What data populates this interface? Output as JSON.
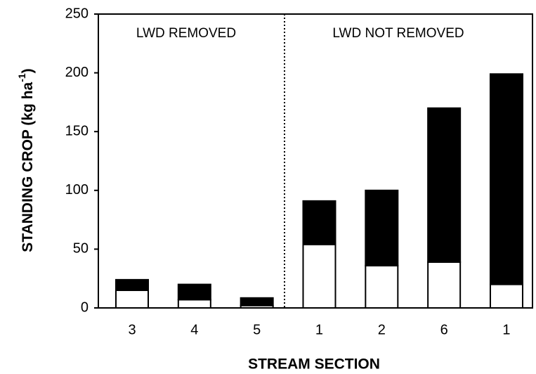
{
  "chart_data": {
    "type": "stacked_bar",
    "x_label": "STREAM SECTION",
    "y_label": {
      "text": "STANDING CROP (kg ha",
      "superscript": "-1",
      "suffix": ")"
    },
    "annotations": [
      "LWD REMOVED",
      "LWD NOT REMOVED"
    ],
    "categories": [
      "3",
      "4",
      "5",
      "1",
      "2",
      "6",
      "1"
    ],
    "series": [
      {
        "color": "#ffffff",
        "values": [
          15,
          7,
          2,
          54,
          36,
          39,
          20
        ]
      },
      {
        "color": "#000000",
        "values": [
          9,
          13,
          6.5,
          37,
          64,
          131,
          179
        ]
      }
    ],
    "ylim": [
      0,
      250
    ],
    "yticks": [
      0,
      50,
      100,
      150,
      200,
      250
    ]
  }
}
